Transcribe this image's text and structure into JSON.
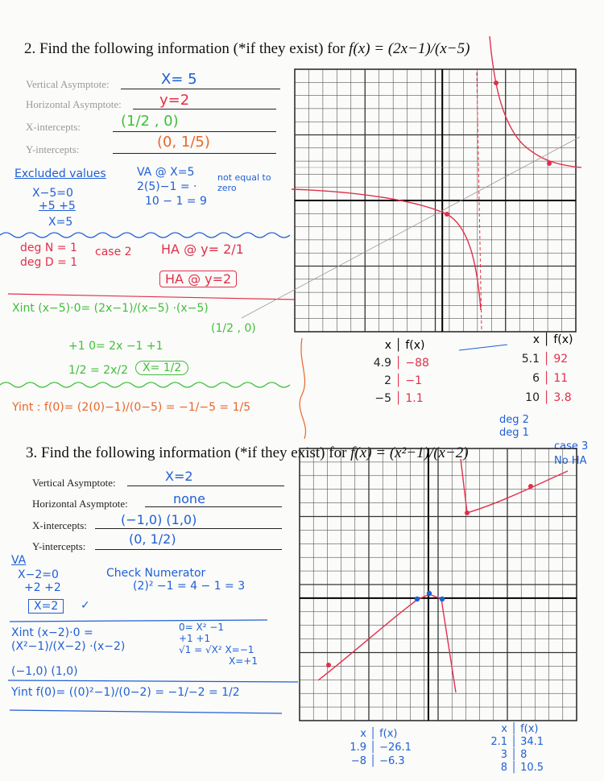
{
  "problem2": {
    "heading": "2. Find the following information (*if they exist) for",
    "function": "f(x) = (2x−1)/(x−5)",
    "labels": {
      "va": "Vertical Asymptote:",
      "ha": "Horizontal Asymptote:",
      "xint": "X-intercepts:",
      "yint": "Y-intercepts:"
    },
    "answers": {
      "va": "X= 5",
      "ha": "y=2",
      "xint": "(1/2 , 0)",
      "yint": "(0, 1/5)"
    },
    "work": {
      "excluded_title": "Excluded values",
      "excluded": [
        "X−5=0",
        "+5 +5",
        "X=5"
      ],
      "va_check": [
        "VA @ X=5",
        "2(5)−1 = ·",
        "10 − 1 = 9"
      ],
      "va_note": "not equal to zero",
      "deg": [
        "deg N = 1",
        "deg D = 1"
      ],
      "case": "case 2",
      "ha_calc": "HA @ y= 2/1",
      "ha_boxed": "HA @ y=2",
      "xint_lines": [
        "Xint (x−5)·0= (2x−1)/(x−5) ·(x−5)",
        "+1 0= 2x −1 +1",
        "1/2 = 2x/2"
      ],
      "xint_point": "(1/2 , 0)",
      "xint_result": "X= 1/2",
      "yint": "Yint : f(0)= (2(0)−1)/(0−5) = −1/−5 = 1/5"
    },
    "table_left": {
      "headers": [
        "x",
        "f(x)"
      ],
      "rows": [
        [
          "4.9",
          "−88"
        ],
        [
          "2",
          "−1"
        ],
        [
          "−5",
          "1.1"
        ]
      ]
    },
    "table_right": {
      "headers": [
        "x",
        "f(x)"
      ],
      "rows": [
        [
          "5.1",
          "92"
        ],
        [
          "6",
          "11"
        ],
        [
          "10",
          "3.8"
        ]
      ]
    }
  },
  "problem3": {
    "heading": "3. Find the following information (*if they exist) for",
    "function": "f(x) = (x²−1)/(x−2)",
    "side_note": [
      "deg 2",
      "deg 1"
    ],
    "case_note": [
      "case 3",
      "No HA"
    ],
    "labels": {
      "va": "Vertical Asymptote:",
      "ha": "Horizontal Asymptote:",
      "xint": "X-intercepts:",
      "yint": "Y-intercepts:"
    },
    "answers": {
      "va": "X=2",
      "ha": "none",
      "xint": "(−1,0)   (1,0)",
      "yint": "(0, 1/2)"
    },
    "work": {
      "va": [
        "VA",
        "X−2=0",
        "+2 +2",
        "X=2"
      ],
      "check_title": "Check Numerator",
      "check": "(2)² −1 = 4 − 1 = 3",
      "xint": "Xint (x−2)·0 = (X²−1)/(X−2) ·(x−2)",
      "xint_solve": [
        "0= X² −1",
        "+1      +1",
        "√1 = √X²   X=−1",
        "X=+1"
      ],
      "points": "(−1,0)  (1,0)",
      "yint": "Yint  f(0)= ((0)²−1)/(0−2) = −1/−2 = 1/2"
    },
    "table_left": {
      "headers": [
        "x",
        "f(x)"
      ],
      "rows": [
        [
          "1.9",
          "−26.1"
        ],
        [
          "−8",
          "−6.3"
        ]
      ]
    },
    "table_right": {
      "headers": [
        "x",
        "f(x)"
      ],
      "rows": [
        [
          "2.1",
          "34.1"
        ],
        [
          "3",
          "8"
        ],
        [
          "8",
          "10.5"
        ]
      ]
    }
  },
  "colors": {
    "blue": "#1f5fd6",
    "red": "#e0304a",
    "green": "#3fbf3a",
    "orange": "#e8662a"
  }
}
